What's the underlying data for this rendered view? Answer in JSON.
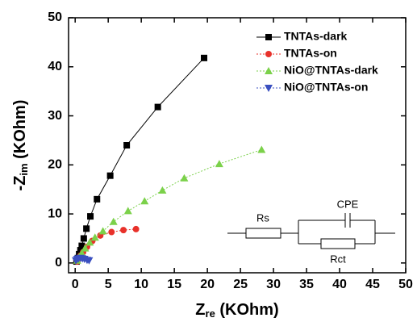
{
  "chart_data": {
    "type": "scatter",
    "xlabel": {
      "main": "Z",
      "sub": "re",
      "unit": " (KOhm)"
    },
    "ylabel": {
      "main": "-Z",
      "sub": "im",
      "unit": " (KOhm)"
    },
    "xlim": [
      -1,
      50
    ],
    "ylim": [
      -2,
      50
    ],
    "xticks": [
      0,
      5,
      10,
      15,
      20,
      25,
      30,
      35,
      40,
      45,
      50
    ],
    "yticks": [
      0,
      10,
      20,
      30,
      40,
      50
    ],
    "legend": "upper right",
    "circuit_labels": [
      "Rs",
      "CPE",
      "Rct"
    ],
    "series": [
      {
        "name": "TNTAs-dark",
        "color": "#000000",
        "marker": "square",
        "line": "solid",
        "x": [
          0.2,
          0.4,
          0.6,
          0.8,
          1.0,
          1.3,
          1.7,
          2.3,
          3.3,
          5.3,
          7.8,
          12.5,
          19.5
        ],
        "values": [
          0.3,
          1,
          1.8,
          2.6,
          3.5,
          5,
          7,
          9.5,
          13,
          17.8,
          24,
          31.8,
          41.8
        ]
      },
      {
        "name": "TNTAs-on",
        "color": "#e8312a",
        "marker": "circle",
        "line": "dotted",
        "x": [
          0.3,
          0.5,
          0.8,
          1.2,
          1.8,
          2.6,
          3.8,
          5.5,
          7.3,
          9.2
        ],
        "values": [
          0.3,
          0.8,
          1.5,
          2.2,
          3.3,
          4.5,
          5.6,
          6.3,
          6.7,
          6.9
        ]
      },
      {
        "name": "NiO@TNTAs-dark",
        "color": "#7bd14a",
        "marker": "triangle",
        "line": "dotted",
        "x": [
          0.3,
          0.6,
          1.0,
          1.5,
          2.2,
          3.0,
          4.2,
          5.8,
          8.0,
          10.5,
          13.2,
          16.5,
          21.8,
          28.2
        ],
        "values": [
          0.5,
          1.2,
          2,
          3,
          4.2,
          5.2,
          6.5,
          8.4,
          10.6,
          12.6,
          14.8,
          17.3,
          20.2,
          23.1
        ]
      },
      {
        "name": "NiO@TNTAs-on",
        "color": "#3a4fc0",
        "marker": "down-triangle",
        "line": "dotted",
        "x": [
          0.1,
          0.3,
          0.5,
          0.8,
          1.1,
          1.4,
          1.8,
          2.1
        ],
        "values": [
          0.5,
          0.8,
          0.9,
          1.0,
          0.9,
          0.8,
          0.6,
          0.5
        ]
      }
    ]
  }
}
